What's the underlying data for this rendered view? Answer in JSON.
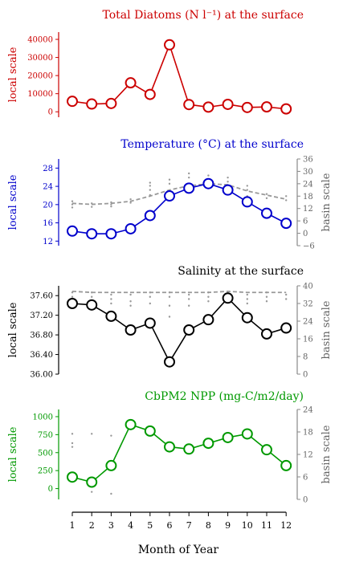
{
  "xaxis": {
    "label": "Month of Year",
    "ticks": [
      "1",
      "2",
      "3",
      "4",
      "5",
      "6",
      "7",
      "8",
      "9",
      "10",
      "11",
      "12"
    ]
  },
  "chart_data": [
    {
      "type": "line",
      "title": "Total Diatoms (N l⁻¹) at the surface",
      "color": "#cc0000",
      "ylabel_left": "local scale",
      "ylim_left": [
        -3000,
        44000
      ],
      "yticks_left": [
        0,
        10000,
        20000,
        30000,
        40000
      ],
      "ytick_labels_left": [
        "0",
        "10000",
        "20000",
        "30000",
        "40000"
      ],
      "x": [
        1,
        2,
        3,
        4,
        5,
        6,
        7,
        8,
        9,
        10,
        11,
        12
      ],
      "series": [
        {
          "values": [
            5800,
            4300,
            4600,
            16000,
            9600,
            37000,
            4000,
            2600,
            4100,
            2400,
            2700,
            1600
          ]
        }
      ]
    },
    {
      "type": "line",
      "title": "Temperature (°C) at the surface",
      "color": "#0000cc",
      "ylabel_left": "local scale",
      "ylabel_right": "basin scale",
      "ylim_left": [
        11,
        30
      ],
      "yticks_left": [
        12,
        16,
        20,
        24,
        28
      ],
      "ytick_labels_left": [
        "12",
        "16",
        "20",
        "24",
        "28"
      ],
      "ylim_right": [
        -6,
        36
      ],
      "yticks_right": [
        -6,
        0,
        6,
        12,
        18,
        24,
        30,
        36
      ],
      "ytick_labels_right": [
        "−6",
        "0",
        "6",
        "12",
        "18",
        "24",
        "30",
        "36"
      ],
      "x": [
        1,
        2,
        3,
        4,
        5,
        6,
        7,
        8,
        9,
        10,
        11,
        12
      ],
      "series": [
        {
          "values": [
            14.2,
            13.6,
            13.6,
            14.7,
            17.6,
            21.9,
            23.6,
            24.6,
            23.2,
            20.6,
            18.1,
            15.9
          ]
        }
      ],
      "basin_mean": [
        14.5,
        14,
        14.5,
        15.5,
        18,
        21,
        23,
        24,
        23.5,
        20.5,
        18.5,
        16.5
      ],
      "basin_dots": [
        [
          1,
          12.5
        ],
        [
          1,
          14
        ],
        [
          1,
          15.5
        ],
        [
          2,
          12.8
        ],
        [
          2,
          14.5
        ],
        [
          3,
          13
        ],
        [
          3,
          14
        ],
        [
          3,
          15
        ],
        [
          4,
          14.8
        ],
        [
          4,
          16.5
        ],
        [
          5,
          18.5
        ],
        [
          5,
          21
        ],
        [
          5,
          23
        ],
        [
          5,
          24.5
        ],
        [
          6,
          20
        ],
        [
          6,
          24
        ],
        [
          6,
          26
        ],
        [
          7,
          21
        ],
        [
          7,
          24
        ],
        [
          7,
          27
        ],
        [
          7,
          29
        ],
        [
          8,
          22
        ],
        [
          8,
          26
        ],
        [
          8,
          28
        ],
        [
          9,
          21
        ],
        [
          9,
          25
        ],
        [
          9,
          27
        ],
        [
          10,
          18
        ],
        [
          10,
          21
        ],
        [
          10,
          23
        ],
        [
          11,
          17
        ],
        [
          11,
          19
        ],
        [
          12,
          16
        ],
        [
          12,
          18
        ]
      ]
    },
    {
      "type": "line",
      "title": "Salinity at the surface",
      "color": "#000000",
      "ylabel_left": "local scale",
      "ylabel_right": "basin scale",
      "ylim_left": [
        36.0,
        37.8
      ],
      "yticks_left": [
        36.0,
        36.4,
        36.8,
        37.2,
        37.6
      ],
      "ytick_labels_left": [
        "36.00",
        "36.40",
        "36.80",
        "37.20",
        "37.60"
      ],
      "ylim_right": [
        0,
        40
      ],
      "yticks_right": [
        0,
        8,
        16,
        24,
        32,
        40
      ],
      "ytick_labels_right": [
        "0",
        "8",
        "16",
        "24",
        "32",
        "40"
      ],
      "x": [
        1,
        2,
        3,
        4,
        5,
        6,
        7,
        8,
        9,
        10,
        11,
        12
      ],
      "series": [
        {
          "values": [
            37.44,
            37.41,
            37.18,
            36.9,
            37.04,
            36.25,
            36.9,
            37.11,
            37.55,
            37.15,
            36.82,
            36.94
          ]
        }
      ],
      "basin_mean": [
        37.5,
        37,
        37,
        37,
        37,
        37,
        37,
        37,
        37.5,
        37,
        37,
        37
      ],
      "basin_dots": [
        [
          1,
          35
        ],
        [
          1,
          37
        ],
        [
          2,
          33
        ],
        [
          2,
          35
        ],
        [
          2,
          37
        ],
        [
          3,
          32
        ],
        [
          3,
          34
        ],
        [
          3,
          36
        ],
        [
          4,
          31
        ],
        [
          4,
          33
        ],
        [
          4,
          36
        ],
        [
          5,
          32
        ],
        [
          5,
          35
        ],
        [
          5,
          37
        ],
        [
          6,
          26
        ],
        [
          6,
          31
        ],
        [
          6,
          35
        ],
        [
          6,
          37
        ],
        [
          7,
          31
        ],
        [
          7,
          34
        ],
        [
          7,
          36
        ],
        [
          8,
          33
        ],
        [
          8,
          35
        ],
        [
          8,
          37
        ],
        [
          9,
          33
        ],
        [
          9,
          35
        ],
        [
          9,
          37
        ],
        [
          10,
          32
        ],
        [
          10,
          34
        ],
        [
          10,
          36
        ],
        [
          11,
          33
        ],
        [
          11,
          35
        ],
        [
          11,
          37
        ],
        [
          12,
          34
        ],
        [
          12,
          36
        ]
      ]
    },
    {
      "type": "line",
      "title": "CbPM2 NPP (mg-C/m2/day)",
      "color": "#009900",
      "ylabel_left": "local scale",
      "ylabel_right": "basin scale",
      "ylim_left": [
        -150,
        1100
      ],
      "yticks_left": [
        0,
        250,
        500,
        750,
        1000
      ],
      "ytick_labels_left": [
        "0",
        "250",
        "500",
        "750",
        "1000"
      ],
      "ylim_right": [
        0,
        24
      ],
      "yticks_right": [
        0,
        6,
        12,
        18,
        24
      ],
      "ytick_labels_right": [
        "0",
        "6",
        "12",
        "18",
        "24"
      ],
      "x": [
        1,
        2,
        3,
        4,
        5,
        6,
        7,
        8,
        9,
        10,
        11,
        12
      ],
      "series": [
        {
          "values": [
            160,
            90,
            320,
            890,
            800,
            580,
            550,
            630,
            710,
            760,
            540,
            320
          ]
        }
      ],
      "basin_dots": [
        [
          1,
          14
        ],
        [
          1,
          15
        ],
        [
          1,
          17.5
        ],
        [
          2,
          2
        ],
        [
          2,
          5
        ],
        [
          2,
          17.5
        ],
        [
          3,
          1.5
        ],
        [
          3,
          17
        ]
      ]
    }
  ]
}
